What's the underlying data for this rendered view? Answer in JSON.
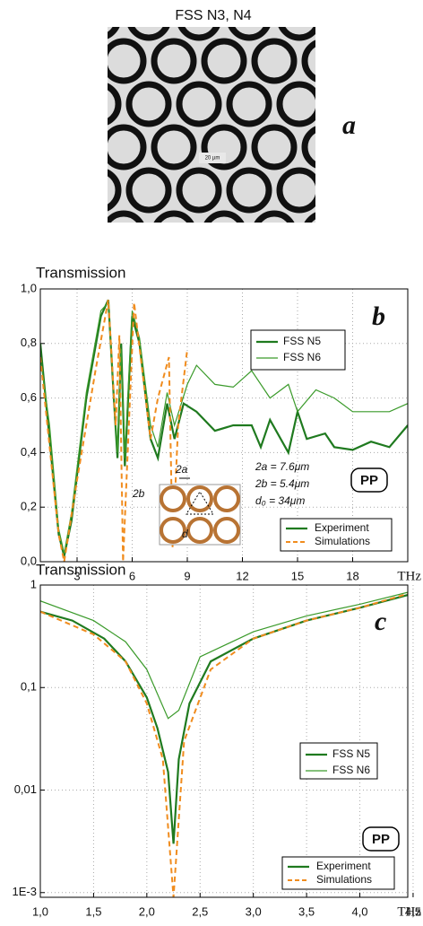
{
  "figure_a": {
    "title": "FSS N3, N4",
    "label": "a",
    "scale_bar": "20 µm"
  },
  "chart_data": [
    {
      "type": "line",
      "title": "Transmission",
      "x_label": "THz",
      "panel_label": "b",
      "xlim": [
        1,
        21
      ],
      "xticks": [
        3,
        6,
        9,
        12,
        15,
        18
      ],
      "ylim": [
        0,
        1
      ],
      "yticks": [
        {
          "value": 0,
          "label": "0,0"
        },
        {
          "value": 0.2,
          "label": "0,2"
        },
        {
          "value": 0.4,
          "label": "0,4"
        },
        {
          "value": 0.6,
          "label": "0,6"
        },
        {
          "value": 0.8,
          "label": "0,8"
        },
        {
          "value": 1,
          "label": "1,0"
        }
      ],
      "log_y": false,
      "grid": true,
      "series": [
        {
          "name": "FSS N5",
          "color": "#1f7a1f",
          "width": 2.2,
          "dash": false,
          "x": [
            1,
            1.5,
            2,
            2.3,
            2.7,
            3.5,
            4.3,
            4.7,
            5.0,
            5.2,
            5.4,
            5.6,
            6.0,
            6.4,
            7.0,
            7.4,
            7.9,
            8.3,
            8.8,
            9.5,
            10.5,
            11.5,
            12.5,
            13,
            13.5,
            14.5,
            15,
            15.5,
            16.5,
            17,
            18,
            19,
            20,
            21
          ],
          "values": [
            0.8,
            0.45,
            0.1,
            0.02,
            0.15,
            0.6,
            0.9,
            0.96,
            0.6,
            0.38,
            0.8,
            0.35,
            0.9,
            0.8,
            0.45,
            0.38,
            0.58,
            0.45,
            0.58,
            0.55,
            0.48,
            0.5,
            0.5,
            0.42,
            0.52,
            0.4,
            0.55,
            0.45,
            0.47,
            0.42,
            0.41,
            0.44,
            0.42,
            0.5
          ]
        },
        {
          "name": "FSS N6",
          "color": "#3a9a2a",
          "width": 1.2,
          "dash": false,
          "x": [
            1,
            1.5,
            2,
            2.3,
            2.7,
            3.5,
            4.3,
            4.7,
            5.0,
            5.2,
            5.4,
            5.6,
            6.0,
            6.4,
            7.0,
            7.4,
            7.9,
            8.3,
            9,
            9.5,
            10.5,
            11.5,
            12.5,
            13.5,
            14.5,
            15,
            16,
            17,
            18,
            19,
            20,
            21
          ],
          "values": [
            0.75,
            0.5,
            0.12,
            0.03,
            0.18,
            0.62,
            0.92,
            0.95,
            0.62,
            0.4,
            0.78,
            0.38,
            0.92,
            0.82,
            0.5,
            0.42,
            0.62,
            0.5,
            0.65,
            0.72,
            0.65,
            0.64,
            0.7,
            0.6,
            0.65,
            0.55,
            0.63,
            0.6,
            0.55,
            0.55,
            0.55,
            0.58
          ]
        },
        {
          "name": "Simulations",
          "color": "#f08c1e",
          "width": 2,
          "dash": true,
          "x": [
            1,
            2,
            2.3,
            3,
            4,
            4.7,
            5.1,
            5.3,
            5.5,
            6.1,
            7,
            7.4,
            8,
            8.2,
            8.5,
            9
          ],
          "values": [
            0.75,
            0.1,
            0.0,
            0.3,
            0.7,
            0.96,
            0.5,
            0.83,
            0.0,
            0.95,
            0.45,
            0.6,
            0.75,
            0.05,
            0.5,
            0.78
          ]
        }
      ],
      "experiment_label": "Experiment",
      "annotations": [
        "2a = 7.6μm",
        "2b = 5.4μm",
        "d₀ = 34μm"
      ],
      "badge": "PP",
      "inset_labels": [
        "2a",
        "2b",
        "d"
      ]
    },
    {
      "type": "line",
      "title": "Transmission",
      "x_label": "THz",
      "panel_label": "c",
      "xlim": [
        1,
        4.45
      ],
      "xticks": [
        {
          "value": 1,
          "label": "1,0"
        },
        {
          "value": 1.5,
          "label": "1,5"
        },
        {
          "value": 2,
          "label": "2,0"
        },
        {
          "value": 2.5,
          "label": "2,5"
        },
        {
          "value": 3,
          "label": "3,0"
        },
        {
          "value": 3.5,
          "label": "3,5"
        },
        {
          "value": 4,
          "label": "4,0"
        },
        {
          "value": 4.5,
          "label": "4,5"
        }
      ],
      "ylim": [
        0.0009,
        1
      ],
      "yticks": [
        {
          "value": 0.001,
          "label": "1E-3"
        },
        {
          "value": 0.01,
          "label": "0,01"
        },
        {
          "value": 0.1,
          "label": "0,1"
        },
        1
      ],
      "log_y": true,
      "grid": true,
      "series": [
        {
          "name": "FSS N5",
          "color": "#1f7a1f",
          "width": 2.2,
          "dash": false,
          "x": [
            1,
            1.3,
            1.6,
            1.8,
            2.0,
            2.1,
            2.2,
            2.25,
            2.3,
            2.4,
            2.6,
            3.0,
            3.5,
            4.0,
            4.45
          ],
          "values": [
            0.55,
            0.45,
            0.3,
            0.18,
            0.08,
            0.04,
            0.015,
            0.003,
            0.02,
            0.07,
            0.18,
            0.3,
            0.45,
            0.6,
            0.8
          ]
        },
        {
          "name": "FSS N6",
          "color": "#3a9a2a",
          "width": 1.2,
          "dash": false,
          "x": [
            1,
            1.5,
            1.8,
            2.0,
            2.2,
            2.3,
            2.5,
            3.0,
            3.5,
            4.0,
            4.45
          ],
          "values": [
            0.7,
            0.45,
            0.28,
            0.15,
            0.05,
            0.06,
            0.2,
            0.35,
            0.5,
            0.65,
            0.85
          ]
        },
        {
          "name": "Simulations",
          "color": "#f08c1e",
          "width": 2,
          "dash": true,
          "x": [
            1,
            1.5,
            1.8,
            2.0,
            2.15,
            2.25,
            2.35,
            2.6,
            3.0,
            3.5,
            4.0,
            4.45
          ],
          "values": [
            0.55,
            0.33,
            0.18,
            0.07,
            0.02,
            0.0009,
            0.03,
            0.15,
            0.3,
            0.45,
            0.6,
            0.82
          ]
        }
      ],
      "experiment_label": "Experiment",
      "badge": "PP"
    }
  ]
}
